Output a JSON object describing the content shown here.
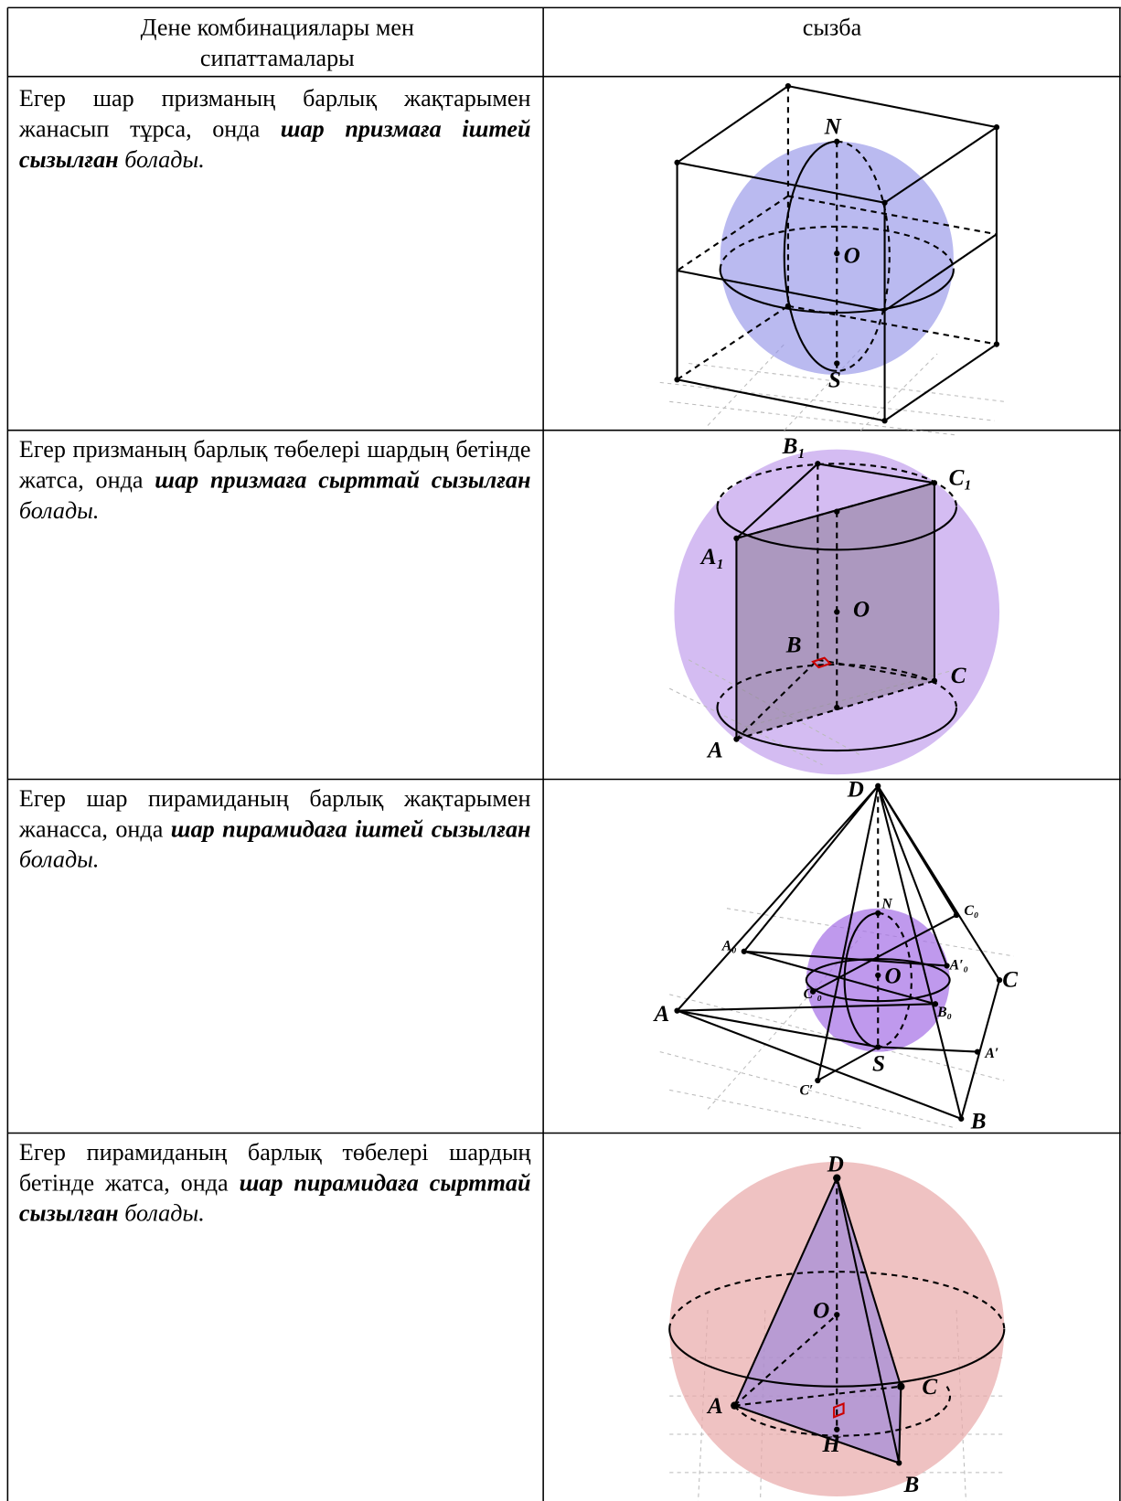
{
  "table": {
    "header": {
      "description": "Дене комбинациялары мен сипаттамалары",
      "figure": "сызба"
    },
    "rows": [
      {
        "lead": "Егер шар призманың барлық жақтарымен жанасып тұрса, онда",
        "term": "шар призмаға іштей сызылған",
        "tail": "болады.",
        "labels": [
          "N",
          "O",
          "S"
        ]
      },
      {
        "lead": "Егер призманың барлық төбелері шардың бетінде жатса, онда",
        "term": "шар призмаға сырттай сызылған",
        "tail": "болады.",
        "labels": [
          "B₁",
          "C₁",
          "A₁",
          "O",
          "B",
          "C",
          "A"
        ]
      },
      {
        "lead": "Егер шар пирамиданың барлық жақтарымен жанасса, онда",
        "term": "шар пирамидаға іштей сызылған",
        "tail": "болады.",
        "labels": [
          "D",
          "N",
          "C₀",
          "A₀",
          "A′₀",
          "O",
          "C′₀",
          "C",
          "B₀",
          "A",
          "S",
          "A′",
          "C′",
          "B"
        ]
      },
      {
        "lead": "Егер пирамиданың барлық төбелері шардың бетінде жатса, онда",
        "term": "шар пирамидаға сырттай сызылған",
        "tail": "болады.",
        "labels": [
          "D",
          "O",
          "C",
          "A",
          "H",
          "B"
        ]
      }
    ]
  }
}
